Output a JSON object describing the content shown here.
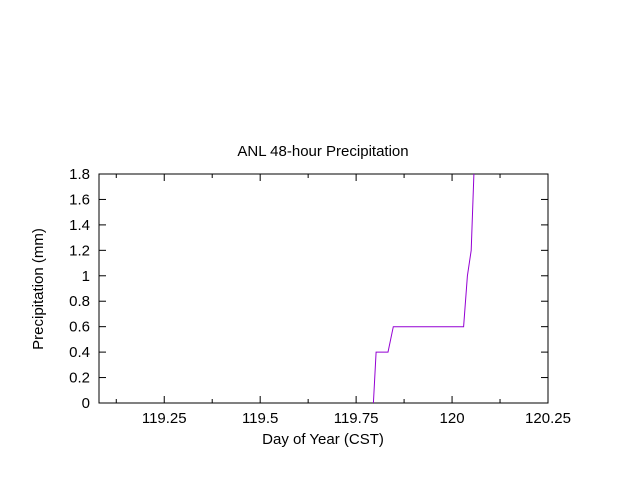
{
  "chart_data": {
    "type": "line",
    "title": "ANL 48-hour Precipitation",
    "xlabel": "Day of Year  (CST)",
    "ylabel": "Precipitation  (mm)",
    "xlim": [
      119.08,
      120.25
    ],
    "ylim": [
      0,
      1.8
    ],
    "x_ticks": [
      {
        "value": 119.25,
        "label": "119.25"
      },
      {
        "value": 119.5,
        "label": "119.5"
      },
      {
        "value": 119.75,
        "label": "119.75"
      },
      {
        "value": 120,
        "label": "120"
      },
      {
        "value": 120.25,
        "label": "120.25"
      }
    ],
    "y_ticks": [
      {
        "value": 0,
        "label": "0"
      },
      {
        "value": 0.2,
        "label": "0.2"
      },
      {
        "value": 0.4,
        "label": "0.4"
      },
      {
        "value": 0.6,
        "label": "0.6"
      },
      {
        "value": 0.8,
        "label": "0.8"
      },
      {
        "value": 1.0,
        "label": "1"
      },
      {
        "value": 1.2,
        "label": "1.2"
      },
      {
        "value": 1.4,
        "label": "1.4"
      },
      {
        "value": 1.6,
        "label": "1.6"
      },
      {
        "value": 1.8,
        "label": "1.8"
      }
    ],
    "grid": false,
    "series": [
      {
        "color": "#9400d3",
        "x": [
          119.795,
          119.802,
          119.833,
          119.847,
          120.03,
          120.04,
          120.05,
          120.057
        ],
        "y": [
          0,
          0.4,
          0.4,
          0.6,
          0.6,
          1.0,
          1.2,
          1.8
        ]
      }
    ]
  }
}
